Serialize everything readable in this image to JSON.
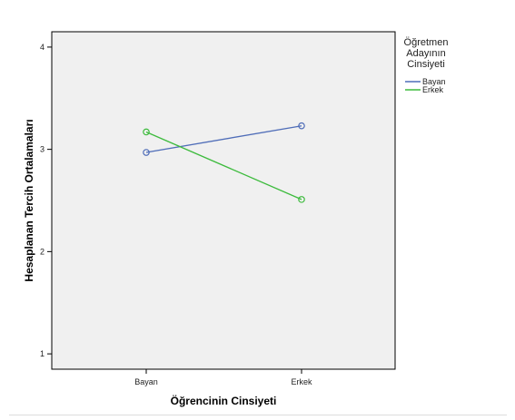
{
  "chart_data": {
    "type": "line",
    "xlabel": "Öğrencinin Cinsiyeti",
    "ylabel": "Hesaplanan Tercih Ortalamaları",
    "categories": [
      "Bayan",
      "Erkek"
    ],
    "ylim": [
      0.85,
      4.15
    ],
    "yticks": [
      1,
      2,
      3,
      4
    ],
    "grid": false,
    "legend": {
      "title_lines": [
        "Öğretmen",
        "Adayının",
        "Cinsiyeti"
      ],
      "placement": "right"
    },
    "series": [
      {
        "name": "Bayan",
        "values": [
          2.97,
          3.23
        ],
        "color": "#4f6db8"
      },
      {
        "name": "Erkek",
        "values": [
          3.17,
          2.51
        ],
        "color": "#3dbb3d"
      }
    ]
  }
}
